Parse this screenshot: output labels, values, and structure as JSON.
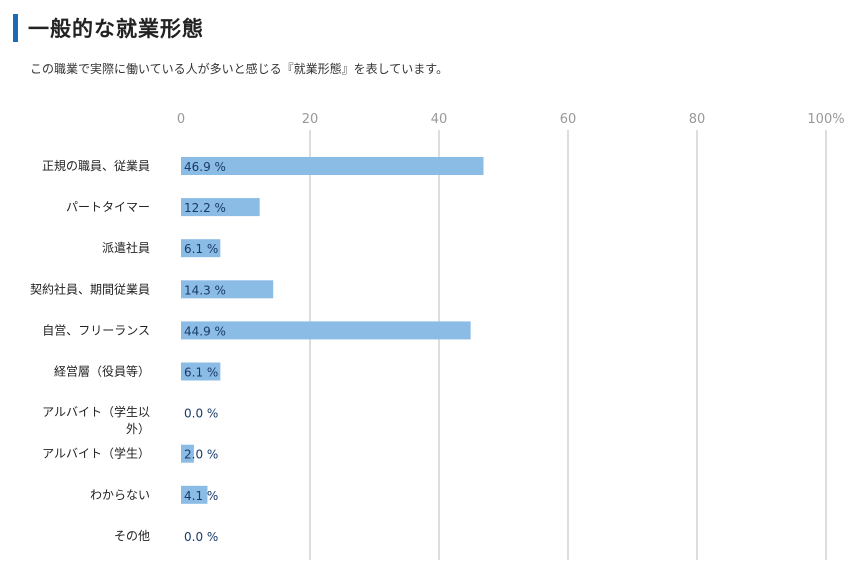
{
  "header": {
    "title": "一般的な就業形態",
    "description": "この職業で実際に働いている人が多いと感じる『就業形態』を表しています。"
  },
  "chart_data": {
    "type": "bar",
    "orientation": "horizontal",
    "title": "",
    "xlabel": "",
    "ylabel": "",
    "xlim": [
      0,
      100
    ],
    "ticks": [
      0,
      20,
      40,
      60,
      80,
      100
    ],
    "tick_labels": [
      "0",
      "20",
      "40",
      "60",
      "80",
      "100%"
    ],
    "grid": true,
    "value_suffix": " %",
    "categories": [
      [
        "正規の職員、従業員"
      ],
      [
        "パートタイマー"
      ],
      [
        "派遣社員"
      ],
      [
        "契約社員、期間従業員"
      ],
      [
        "自営、フリーランス"
      ],
      [
        "経営層（役員等）"
      ],
      [
        "アルバイト（学生以",
        "外）"
      ],
      [
        "アルバイト（学生）"
      ],
      [
        "わからない"
      ],
      [
        "その他"
      ]
    ],
    "values": [
      46.9,
      12.2,
      6.1,
      14.3,
      44.9,
      6.1,
      0.0,
      2.0,
      4.1,
      0.0
    ],
    "bar_color": "#8bbce6"
  }
}
